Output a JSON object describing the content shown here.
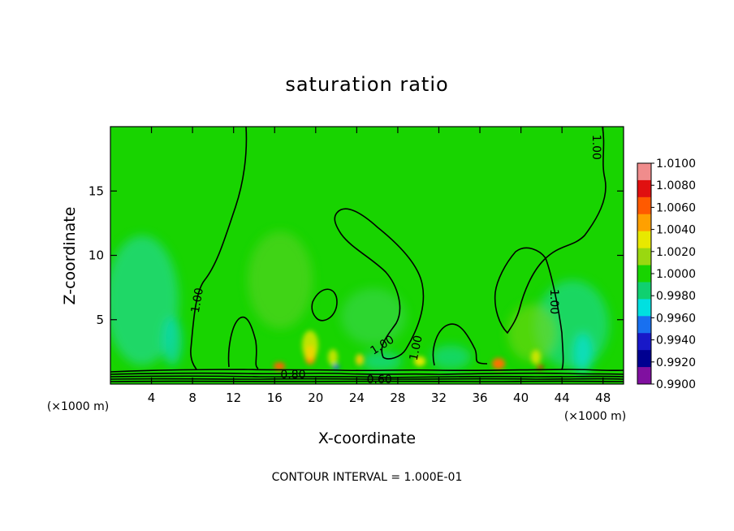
{
  "chart_data": {
    "type": "heatmap",
    "title": "saturation ratio",
    "xlabel": "X-coordinate",
    "ylabel": "Z-coordinate",
    "x_unit": "(×1000 m)",
    "x_unit_right": "(×1000 m)",
    "xlim": [
      0,
      50
    ],
    "ylim": [
      0,
      20
    ],
    "x_ticks": [
      4,
      8,
      12,
      16,
      20,
      24,
      28,
      32,
      36,
      40,
      44,
      48
    ],
    "y_ticks": [
      5,
      10,
      15
    ],
    "colorbar": {
      "labels": [
        "1.0100",
        "1.0080",
        "1.0060",
        "1.0040",
        "1.0020",
        "1.0000",
        "0.9980",
        "0.9960",
        "0.9940",
        "0.9920",
        "0.9900"
      ],
      "colors": [
        "#f08c8c",
        "#e01010",
        "#ff5a00",
        "#ffa000",
        "#e8e800",
        "#9ad810",
        "#18d400",
        "#10d070",
        "#00e0e0",
        "#1870f0",
        "#1818c8",
        "#000090",
        "#8010a0"
      ]
    },
    "background_color": "#18d400",
    "contour_labels": [
      {
        "text": "1.00",
        "x": 8.5,
        "z": 6.5,
        "rot": -80
      },
      {
        "text": "1.00",
        "x": 26.5,
        "z": 3.0,
        "rot": -32
      },
      {
        "text": "1.00",
        "x": 29.8,
        "z": 2.8,
        "rot": -78
      },
      {
        "text": "1.00",
        "x": 43.2,
        "z": 6.4,
        "rot": 90
      },
      {
        "text": "1.00",
        "x": 47.3,
        "z": 18.4,
        "rot": 90
      },
      {
        "text": "0.80",
        "x": 17.8,
        "z": 0.7,
        "rot": 0
      },
      {
        "text": "0.60",
        "x": 26.2,
        "z": 0.3,
        "rot": 0
      }
    ],
    "contour_interval_text": "CONTOUR INTERVAL = 1.000E-01"
  }
}
